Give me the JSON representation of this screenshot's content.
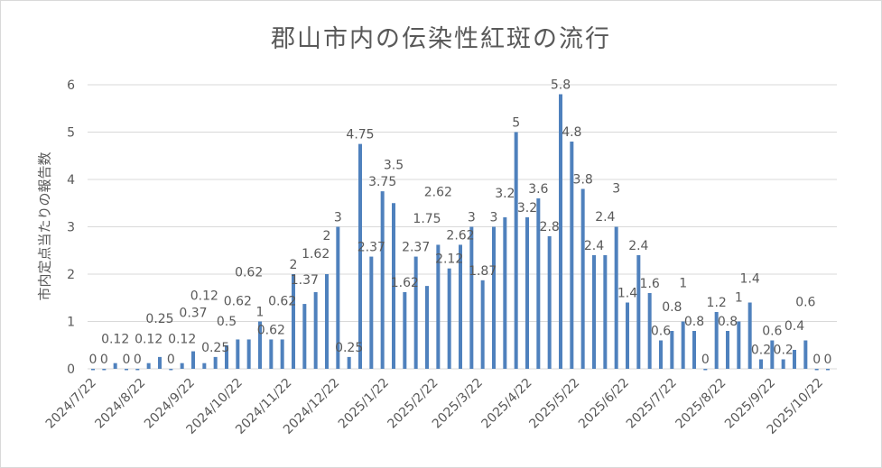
{
  "chart_data": {
    "type": "bar",
    "title": "郡山市内の伝染性紅斑の流行",
    "xlabel": "",
    "ylabel": "市内定点当たりの報告数",
    "ylim": [
      0,
      6
    ],
    "yticks": [
      0,
      1,
      2,
      3,
      4,
      5,
      6
    ],
    "grid": true,
    "start_date": "2024/7/22",
    "interval_days": 7,
    "xtick_labels": [
      "2024/7/22",
      "2024/8/22",
      "2024/9/22",
      "2024/10/22",
      "2024/11/22",
      "2024/12/22",
      "2025/1/22",
      "2025/2/22",
      "2025/3/22",
      "2025/4/22",
      "2025/5/22",
      "2025/6/22",
      "2025/7/22",
      "2025/8/22",
      "2025/9/22",
      "2025/10/22"
    ],
    "values": [
      0,
      0,
      0.12,
      0,
      0,
      0.12,
      0.25,
      0,
      0.12,
      0.37,
      0.12,
      0.25,
      0.5,
      0.62,
      0.62,
      1,
      0.62,
      0.62,
      2,
      1.37,
      1.62,
      2,
      3,
      0.25,
      4.75,
      2.37,
      3.75,
      3.5,
      1.62,
      2.37,
      1.75,
      2.62,
      2.12,
      2.62,
      3,
      1.87,
      3,
      3.2,
      5,
      3.2,
      3.6,
      2.8,
      5.8,
      4.8,
      3.8,
      2.4,
      2.4,
      3,
      1.4,
      2.4,
      1.6,
      0.6,
      0.8,
      1,
      0.8,
      0,
      1.2,
      0.8,
      1,
      1.4,
      0.2,
      0.6,
      0.2,
      0.4,
      0.6,
      0,
      0
    ],
    "bar_color": "#4f81bd"
  }
}
